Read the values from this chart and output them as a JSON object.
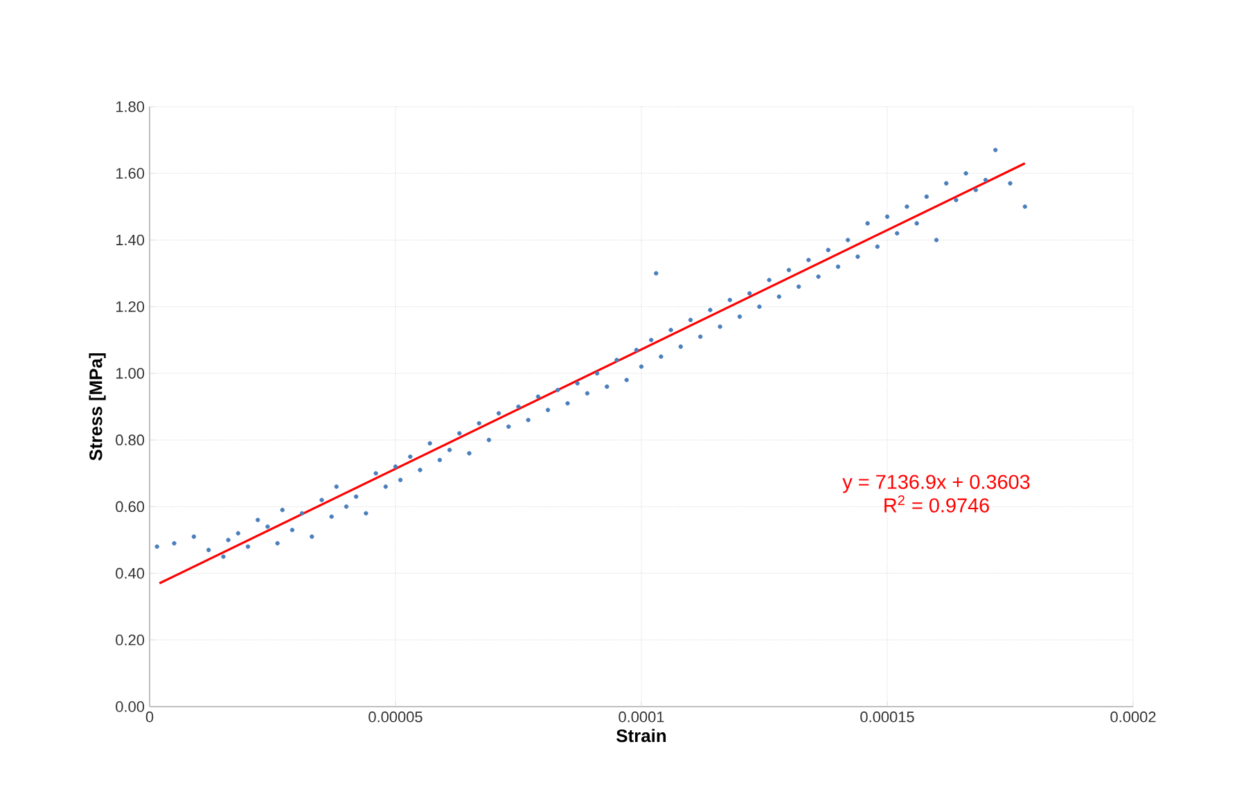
{
  "chart_data": {
    "type": "scatter",
    "xlabel": "Strain",
    "ylabel": "Stress [MPa]",
    "xlim": [
      0,
      0.0002
    ],
    "ylim": [
      0,
      1.8
    ],
    "xticks": [
      {
        "value": 0,
        "label": "0"
      },
      {
        "value": 5e-05,
        "label": "0.00005"
      },
      {
        "value": 0.0001,
        "label": "0.0001"
      },
      {
        "value": 0.00015,
        "label": "0.00015"
      },
      {
        "value": 0.0002,
        "label": "0.0002"
      }
    ],
    "yticks": [
      {
        "value": 0,
        "label": "0.00"
      },
      {
        "value": 0.2,
        "label": "0.20"
      },
      {
        "value": 0.4,
        "label": "0.40"
      },
      {
        "value": 0.6,
        "label": "0.60"
      },
      {
        "value": 0.8,
        "label": "0.80"
      },
      {
        "value": 1.0,
        "label": "1.00"
      },
      {
        "value": 1.2,
        "label": "1.20"
      },
      {
        "value": 1.4,
        "label": "1.40"
      },
      {
        "value": 1.6,
        "label": "1.60"
      },
      {
        "value": 1.8,
        "label": "1.80"
      }
    ],
    "grid": true,
    "annotations": [
      "y = 7136.9x + 0.3603",
      "R$^{2}$ = 0.9746"
    ],
    "series": [
      {
        "color": "#4a7ebb",
        "x": [
          1.5e-06,
          5e-06,
          9e-06,
          1.2e-05,
          1.5e-05,
          1.6e-05,
          1.8e-05,
          2e-05,
          2.2e-05,
          2.4e-05,
          2.6e-05,
          2.7e-05,
          2.9e-05,
          3.1e-05,
          3.3e-05,
          3.5e-05,
          3.7e-05,
          3.8e-05,
          4e-05,
          4.2e-05,
          4.4e-05,
          4.6e-05,
          4.8e-05,
          5e-05,
          5.1e-05,
          5.3e-05,
          5.5e-05,
          5.7e-05,
          5.9e-05,
          6.1e-05,
          6.3e-05,
          6.5e-05,
          6.7e-05,
          6.9e-05,
          7.1e-05,
          7.3e-05,
          7.5e-05,
          7.7e-05,
          7.9e-05,
          8.1e-05,
          8.3e-05,
          8.5e-05,
          8.7e-05,
          8.9e-05,
          9.1e-05,
          9.3e-05,
          9.5e-05,
          9.7e-05,
          9.9e-05,
          0.0001,
          0.000102,
          0.000103,
          0.000104,
          0.000106,
          0.000108,
          0.00011,
          0.000112,
          0.000114,
          0.000116,
          0.000118,
          0.00012,
          0.000122,
          0.000124,
          0.000126,
          0.000128,
          0.00013,
          0.000132,
          0.000134,
          0.000136,
          0.000138,
          0.00014,
          0.000142,
          0.000144,
          0.000146,
          0.000148,
          0.00015,
          0.000152,
          0.000154,
          0.000156,
          0.000158,
          0.00016,
          0.000162,
          0.000164,
          0.000166,
          0.000168,
          0.00017,
          0.000172,
          0.000175,
          0.000178
        ],
        "values": [
          0.48,
          0.49,
          0.51,
          0.47,
          0.45,
          0.5,
          0.52,
          0.48,
          0.56,
          0.54,
          0.49,
          0.59,
          0.53,
          0.58,
          0.51,
          0.62,
          0.57,
          0.66,
          0.6,
          0.63,
          0.58,
          0.7,
          0.66,
          0.72,
          0.68,
          0.75,
          0.71,
          0.79,
          0.74,
          0.77,
          0.82,
          0.76,
          0.85,
          0.8,
          0.88,
          0.84,
          0.9,
          0.86,
          0.93,
          0.89,
          0.95,
          0.91,
          0.97,
          0.94,
          1.0,
          0.96,
          1.04,
          0.98,
          1.07,
          1.02,
          1.1,
          1.3,
          1.05,
          1.13,
          1.08,
          1.16,
          1.11,
          1.19,
          1.14,
          1.22,
          1.17,
          1.24,
          1.2,
          1.28,
          1.23,
          1.31,
          1.26,
          1.34,
          1.29,
          1.37,
          1.32,
          1.4,
          1.35,
          1.45,
          1.38,
          1.47,
          1.42,
          1.5,
          1.45,
          1.53,
          1.4,
          1.57,
          1.52,
          1.6,
          1.55,
          1.58,
          1.67,
          1.57,
          1.5
        ]
      },
      {
        "type": "line",
        "color": "#ff0000",
        "marker": "none",
        "x": [
          2e-06,
          0.000178
        ],
        "values": [
          0.37,
          1.63
        ]
      }
    ]
  }
}
